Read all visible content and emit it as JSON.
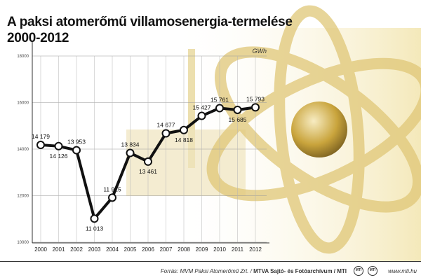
{
  "title": {
    "line1": "A paksi atomerőmű villamosenergia-termelése",
    "line2": "2000-2012"
  },
  "chart_data": {
    "type": "line",
    "title": "A paksi atomerőmű villamosenergia-termelése 2000-2012",
    "unit": "GWh",
    "x": [
      "2000",
      "2001",
      "2002",
      "2003",
      "2004",
      "2005",
      "2006",
      "2007",
      "2008",
      "2009",
      "2010",
      "2011",
      "2012"
    ],
    "series": [
      {
        "values": [
          14179,
          14126,
          13953,
          11013,
          11915,
          13834,
          13461,
          14677,
          14818,
          15427,
          15761,
          15685,
          15793
        ],
        "labels": [
          "14 179",
          "14 126",
          "13 953",
          "11 013",
          "11 915",
          "13 834",
          "13 461",
          "14 677",
          "14 818",
          "15 427",
          "15 761",
          "15 685",
          "15 793"
        ]
      }
    ],
    "yticks": [
      10000,
      12000,
      14000,
      16000,
      18000
    ],
    "ylim": [
      10000,
      18000
    ],
    "grid": true,
    "line_color": "#111111",
    "marker_fill": "#ffffff"
  },
  "footer": {
    "source_prefix": "Forrás: MVM Paksi Atomerőmű Zrt. /",
    "source_bold": "MTVA Sajtó- és Fotóarchívum / MTI",
    "logo1": "MTI",
    "logo2": "MTI",
    "site": "www.mti.hu"
  },
  "colors": {
    "accent": "#c9a227",
    "background_art": "#e9d58c"
  }
}
